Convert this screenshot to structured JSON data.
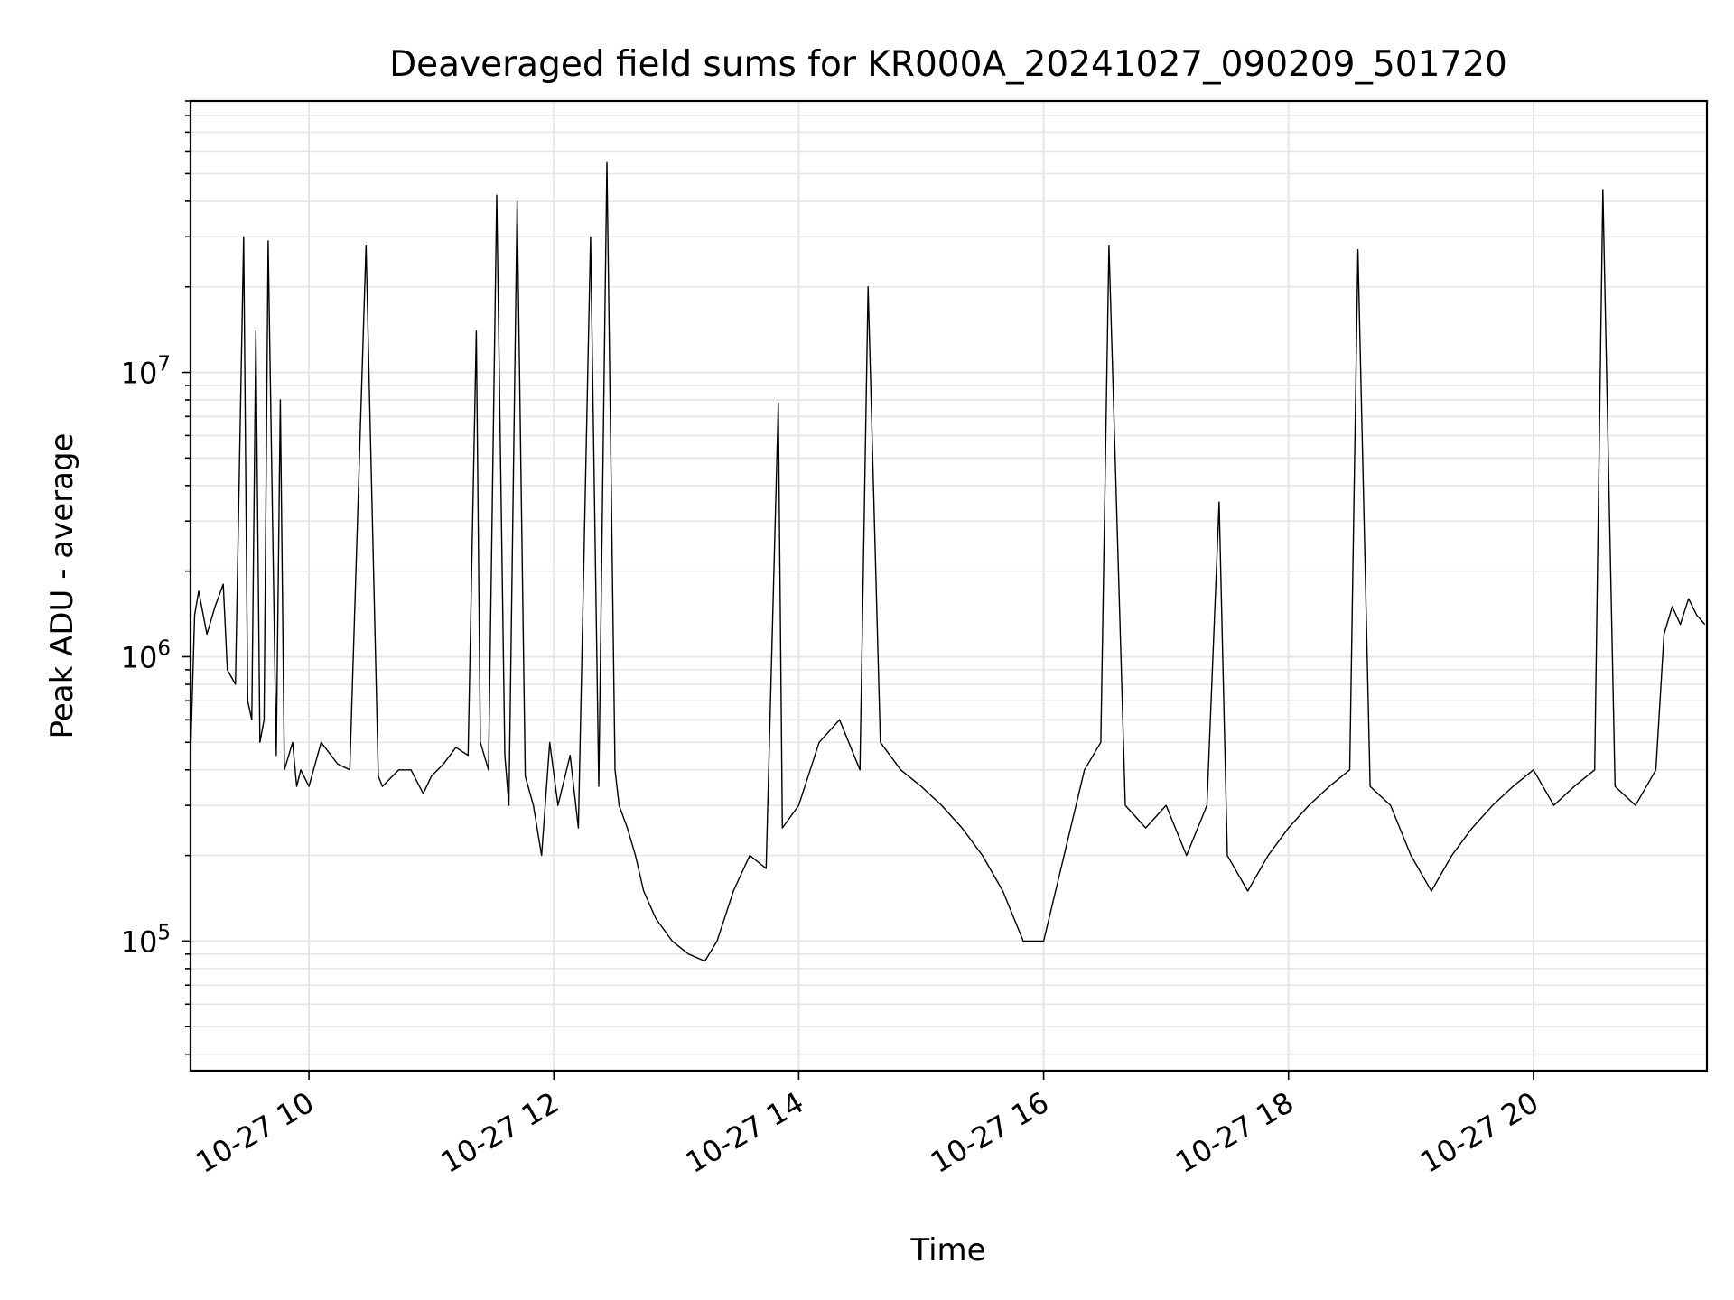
{
  "chart_data": {
    "type": "line",
    "title": "Deaveraged field sums for KR000A_20241027_090209_501720",
    "xlabel": "Time",
    "ylabel": "Peak ADU - average",
    "x_axis": {
      "kind": "time",
      "range": [
        "2024-10-27 09:02",
        "2024-10-27 21:25"
      ],
      "tick_labels": [
        "10-27 10",
        "10-27 12",
        "10-27 14",
        "10-27 16",
        "10-27 18",
        "10-27 20"
      ],
      "tick_label_rotation_deg": 30
    },
    "y_axis": {
      "scale": "log",
      "range": [
        35000,
        90000000
      ],
      "tick_labels": [
        {
          "base": "10",
          "exp": "5",
          "value": 100000
        },
        {
          "base": "10",
          "exp": "6",
          "value": 1000000
        },
        {
          "base": "10",
          "exp": "7",
          "value": 10000000
        }
      ]
    },
    "grid": true,
    "legend": "none",
    "line_color": "#000000",
    "series": [
      {
        "x": [
          "09:02",
          "09:04",
          "09:06",
          "09:10",
          "09:14",
          "09:18",
          "09:20",
          "09:24",
          "09:28",
          "09:30",
          "09:32",
          "09:34",
          "09:36",
          "09:38",
          "09:40",
          "09:44",
          "09:46",
          "09:48",
          "09:52",
          "09:54",
          "09:56",
          "10:00",
          "10:06",
          "10:14",
          "10:20",
          "10:28",
          "10:34",
          "10:36",
          "10:44",
          "10:50",
          "10:56",
          "11:00",
          "11:06",
          "11:12",
          "11:18",
          "11:22",
          "11:24",
          "11:28",
          "11:32",
          "11:36",
          "11:38",
          "11:42",
          "11:46",
          "11:50",
          "11:54",
          "11:58",
          "12:02",
          "12:08",
          "12:12",
          "12:18",
          "12:22",
          "12:26",
          "12:30",
          "12:32",
          "12:36",
          "12:40",
          "12:44",
          "12:50",
          "12:58",
          "13:06",
          "13:14",
          "13:20",
          "13:28",
          "13:36",
          "13:44",
          "13:50",
          "13:52",
          "14:00",
          "14:10",
          "14:20",
          "14:30",
          "14:34",
          "14:40",
          "14:50",
          "15:00",
          "15:10",
          "15:20",
          "15:30",
          "15:40",
          "15:50",
          "16:00",
          "16:10",
          "16:20",
          "16:28",
          "16:32",
          "16:40",
          "16:50",
          "17:00",
          "17:10",
          "17:20",
          "17:26",
          "17:30",
          "17:40",
          "17:50",
          "18:00",
          "18:10",
          "18:20",
          "18:30",
          "18:34",
          "18:40",
          "18:50",
          "19:00",
          "19:10",
          "19:20",
          "19:30",
          "19:40",
          "19:50",
          "20:00",
          "20:10",
          "20:20",
          "20:30",
          "20:34",
          "20:40",
          "20:50",
          "21:00",
          "21:04",
          "21:08",
          "21:12",
          "21:16",
          "21:20",
          "21:24"
        ],
        "values": [
          450000,
          1400000,
          1700000,
          1200000,
          1500000,
          1800000,
          900000,
          800000,
          30000000,
          700000,
          600000,
          14000000,
          500000,
          600000,
          29000000,
          450000,
          8000000,
          400000,
          500000,
          350000,
          400000,
          350000,
          500000,
          420000,
          400000,
          28000000,
          380000,
          350000,
          400000,
          400000,
          330000,
          380000,
          420000,
          480000,
          450000,
          14000000,
          500000,
          400000,
          42000000,
          450000,
          300000,
          40000000,
          380000,
          300000,
          200000,
          500000,
          300000,
          450000,
          250000,
          30000000,
          350000,
          55000000,
          400000,
          300000,
          250000,
          200000,
          150000,
          120000,
          100000,
          90000,
          85000,
          100000,
          150000,
          200000,
          180000,
          7800000,
          250000,
          300000,
          500000,
          600000,
          400000,
          20000000,
          500000,
          400000,
          350000,
          300000,
          250000,
          200000,
          150000,
          100000,
          100000,
          200000,
          400000,
          500000,
          28000000,
          300000,
          250000,
          300000,
          200000,
          300000,
          3500000,
          200000,
          150000,
          200000,
          250000,
          300000,
          350000,
          400000,
          27000000,
          350000,
          300000,
          200000,
          150000,
          200000,
          250000,
          300000,
          350000,
          400000,
          300000,
          350000,
          400000,
          44000000,
          350000,
          300000,
          400000,
          1200000,
          1500000,
          1300000,
          1600000,
          1400000,
          1300000
        ]
      }
    ]
  }
}
